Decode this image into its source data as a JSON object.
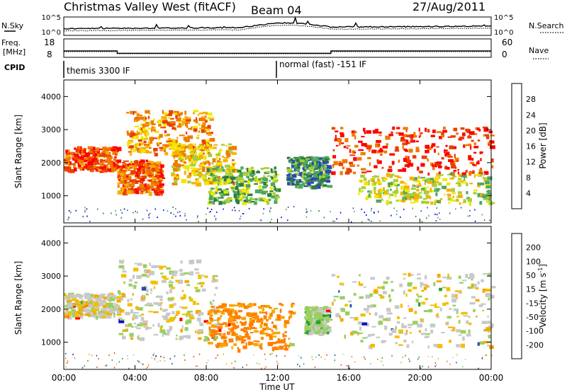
{
  "header": {
    "station": "Christmas Valley West (fitACF)",
    "beam": "Beam 04",
    "date": "27/Aug/2011"
  },
  "top_panels": {
    "nsky_label": "N.Sky",
    "nsearch_label": "N.Search",
    "noise_ticks": [
      "10^5",
      "10^0"
    ],
    "freq_label_1": "Freq.",
    "freq_label_2": "[MHz]",
    "freq_ticks": [
      "18",
      "8"
    ],
    "nave_ticks": [
      "60",
      "0"
    ],
    "nave_label": "Nave",
    "cpid_label": "CPID",
    "cpid_segments": [
      {
        "label": "themis 3300 IF",
        "start_hour": 0,
        "end_hour": 12
      },
      {
        "label": "normal (fast) -151 IF",
        "start_hour": 12,
        "end_hour": 24
      }
    ],
    "freq_steps": [
      {
        "start_hour": 0,
        "end_hour": 3,
        "value": 11.5
      },
      {
        "start_hour": 3,
        "end_hour": 15,
        "value": 10.2
      },
      {
        "start_hour": 15,
        "end_hour": 24,
        "value": 11.5
      }
    ]
  },
  "chart_data": [
    {
      "type": "heatmap",
      "quantity": "Power",
      "ylabel": "Slant Range [km]",
      "yticks": [
        1000,
        2000,
        3000,
        4000
      ],
      "ylim": [
        180,
        4500
      ],
      "xlim": [
        0,
        24
      ],
      "colorbar": {
        "label": "Power [dB]",
        "ticks": [
          "28",
          "24",
          "20",
          "16",
          "12",
          "8",
          "4"
        ],
        "colors": [
          "#0000ff",
          "#2e46b8",
          "#2f7a46",
          "#4ca85e",
          "#a5cf3a",
          "#f2e600",
          "#f8b000",
          "#f07a00",
          "#e84000",
          "#ff0000"
        ]
      },
      "echo_regions": [
        {
          "x": [
            0.0,
            3.0
          ],
          "y": [
            1800,
            2500
          ],
          "level": 0.85
        },
        {
          "x": [
            3.0,
            5.5
          ],
          "y": [
            1100,
            2100
          ],
          "level": 0.8
        },
        {
          "x": [
            3.5,
            8.2
          ],
          "y": [
            2300,
            3600
          ],
          "level": 0.7
        },
        {
          "x": [
            6.0,
            9.5
          ],
          "y": [
            1400,
            2600
          ],
          "level": 0.6
        },
        {
          "x": [
            8.0,
            12.0
          ],
          "y": [
            800,
            1900
          ],
          "level": 0.4
        },
        {
          "x": [
            12.5,
            14.8
          ],
          "y": [
            1300,
            2200
          ],
          "level": 0.3
        },
        {
          "x": [
            15.0,
            24.0
          ],
          "y": [
            1700,
            3100
          ],
          "level": 0.88
        },
        {
          "x": [
            16.5,
            24.0
          ],
          "y": [
            800,
            1700
          ],
          "level": 0.5
        }
      ]
    },
    {
      "type": "heatmap",
      "quantity": "Velocity",
      "ylabel": "Slant Range [km]",
      "yticks": [
        1000,
        2000,
        3000,
        4000
      ],
      "ylim": [
        180,
        4500
      ],
      "xlim": [
        0,
        24
      ],
      "xlabel": "Time UT",
      "xticks": [
        "00:00",
        "04:00",
        "08:00",
        "12:00",
        "16:00",
        "20:00",
        "00:00"
      ],
      "colorbar": {
        "label": "Velocity [m s",
        "label_exponent": "-1",
        "label_close": "]",
        "ticks": [
          "200",
          "100",
          "50",
          "15",
          "-15",
          "-50",
          "-100",
          "-200"
        ],
        "colors": [
          "#ff0000",
          "#ff4400",
          "#ff8000",
          "#f6a800",
          "#f2c000",
          "#c8c8c8",
          "#98d060",
          "#30a030",
          "#2050a0",
          "#1010c0"
        ]
      },
      "echo_regions": [
        {
          "x": [
            0.0,
            3.0
          ],
          "y": [
            1800,
            2500
          ],
          "velocity": -5
        },
        {
          "x": [
            3.0,
            8.5
          ],
          "y": [
            1100,
            3500
          ],
          "velocity": 0
        },
        {
          "x": [
            8.0,
            12.8
          ],
          "y": [
            800,
            2200
          ],
          "velocity": -60
        },
        {
          "x": [
            13.5,
            14.8
          ],
          "y": [
            1300,
            2100
          ],
          "velocity": 30
        },
        {
          "x": [
            15.0,
            24.0
          ],
          "y": [
            900,
            3100
          ],
          "velocity": 0
        }
      ]
    }
  ]
}
